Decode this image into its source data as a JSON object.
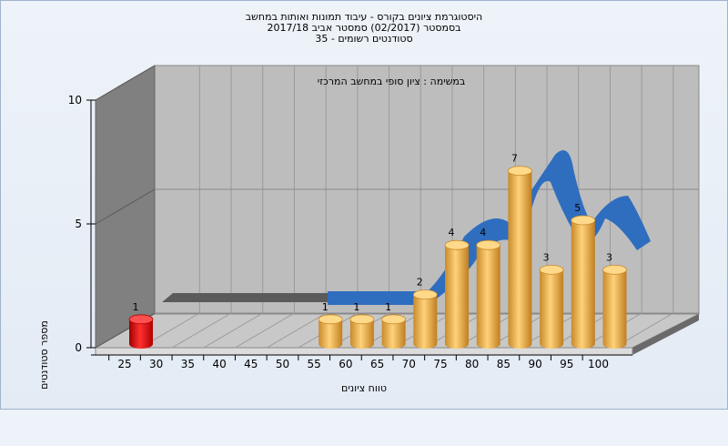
{
  "titles": {
    "line1": "היסטוגרמת ציונים בקורס - עיבוד תמונות ואותות במחשב",
    "line2": "בסמסטר (02/2017) סמסטר אביב 2017/18",
    "line3": "סטודנטים רשומים - 35"
  },
  "chart_data": {
    "type": "bar",
    "title": "היסטוגרמת ציונים בקורס - עיבוד תמונות ואותות במחשב",
    "subtitle": "במשימה : ציון סופי במחשב המרכזי",
    "xlabel": "טווח ציונים",
    "ylabel": "מספר סטודנטים",
    "categories": [
      "25",
      "30",
      "35",
      "40",
      "45",
      "50",
      "55",
      "60",
      "65",
      "70",
      "75",
      "80",
      "85",
      "90",
      "95",
      "100"
    ],
    "values": [
      1,
      0,
      0,
      0,
      0,
      0,
      1,
      1,
      1,
      2,
      4,
      4,
      7,
      3,
      5,
      3
    ],
    "data_labels": [
      "1",
      "",
      "",
      "",
      "",
      "",
      "1",
      "1",
      "1",
      "2",
      "4",
      "4",
      "7",
      "3",
      "5",
      "3"
    ],
    "yticks": [
      0,
      5,
      10
    ],
    "ylim": [
      0,
      10
    ],
    "colors": {
      "highlight": "#e01010",
      "bars": "#f0b040",
      "curve": "#2f6dbf"
    }
  }
}
